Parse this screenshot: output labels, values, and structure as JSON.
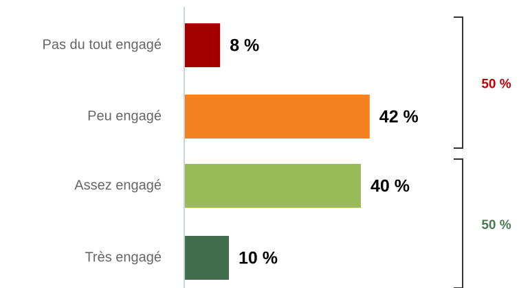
{
  "chart_data": {
    "type": "bar",
    "orientation": "horizontal",
    "categories": [
      "Pas du tout engagé",
      "Peu engagé",
      "Assez engagé",
      "Très engagé"
    ],
    "values": [
      8,
      42,
      40,
      10
    ],
    "value_labels": [
      "8 %",
      "42 %",
      "40 %",
      "10 %"
    ],
    "colors": [
      "#a50000",
      "#f58220",
      "#9bbb59",
      "#426e50"
    ],
    "annotations": [
      {
        "text": "50 %",
        "color": "#c00000"
      },
      {
        "text": "50 %",
        "color": "#4a7a55"
      }
    ]
  }
}
